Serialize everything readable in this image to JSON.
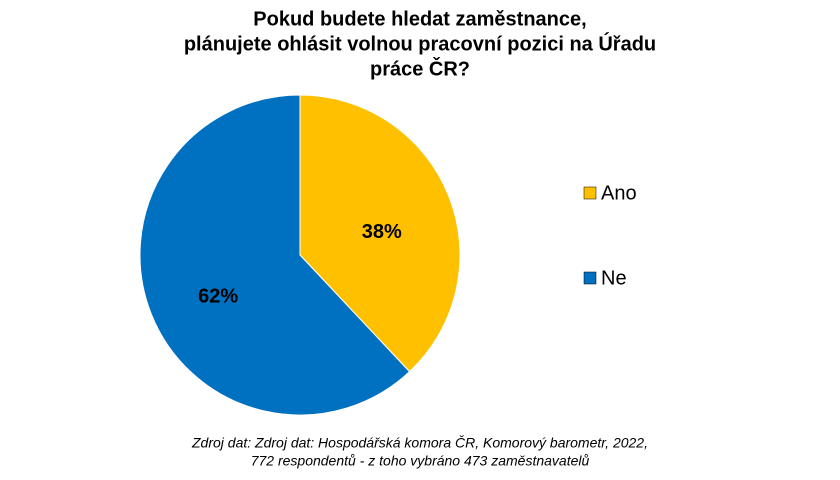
{
  "chart_data": {
    "type": "pie",
    "title": [
      "Pokud budete hledat zaměstnance,",
      "plánujete ohlásit volnou pracovní pozici na Úřadu",
      "práce ČR?"
    ],
    "categories": [
      "Ano",
      "Ne"
    ],
    "values": [
      38,
      62
    ],
    "value_labels": [
      "38%",
      "62%"
    ],
    "colors": [
      "#FFC000",
      "#0070C0"
    ],
    "legend": "right",
    "source": [
      "Zdroj dat: Zdroj dat: Hospodářská komora ČR, Komorový barometr, 2022,",
      "772 respondentů - z toho vybráno 473 zaměstnavatelů"
    ]
  }
}
